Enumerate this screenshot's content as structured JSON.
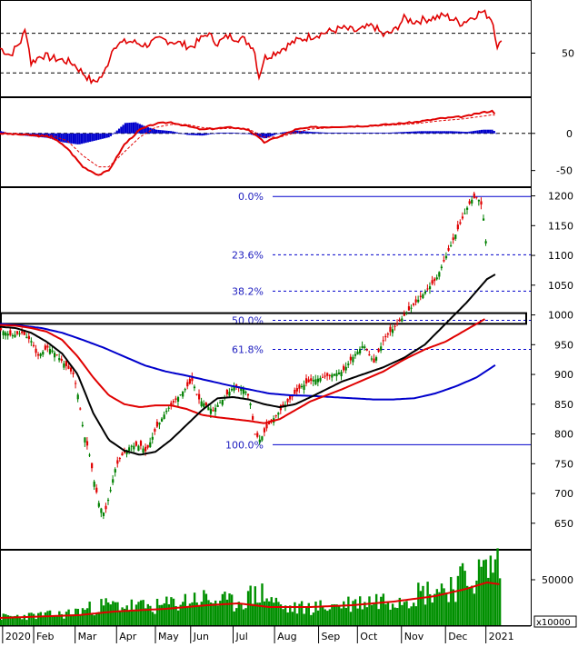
{
  "colors": {
    "up": "#008000",
    "down": "#e00000",
    "rsi_line": "#e00000",
    "macd_line": "#e00000",
    "macd_signal": "#e00000",
    "macd_hist": "#0000cc",
    "ma_short": "#e00000",
    "ma_mid": "#000000",
    "ma_long": "#0000cc",
    "fib_text": "#2020c0",
    "fib_line": "#0000cc",
    "volume_bar": "#009000",
    "volume_ma": "#e00000"
  },
  "chart_data": [
    {
      "panel": "rsi",
      "type": "line",
      "y_ticks": [
        50
      ],
      "reference_lines": [
        30,
        70
      ],
      "points": [
        [
          0.0,
          55
        ],
        [
          0.02,
          48
        ],
        [
          0.04,
          62
        ],
        [
          0.05,
          75
        ],
        [
          0.06,
          40
        ],
        [
          0.08,
          48
        ],
        [
          0.1,
          45
        ],
        [
          0.12,
          43
        ],
        [
          0.14,
          40
        ],
        [
          0.16,
          30
        ],
        [
          0.18,
          20
        ],
        [
          0.2,
          28
        ],
        [
          0.22,
          58
        ],
        [
          0.25,
          62
        ],
        [
          0.28,
          58
        ],
        [
          0.31,
          64
        ],
        [
          0.34,
          61
        ],
        [
          0.37,
          56
        ],
        [
          0.4,
          70
        ],
        [
          0.42,
          60
        ],
        [
          0.44,
          67
        ],
        [
          0.47,
          64
        ],
        [
          0.49,
          56
        ],
        [
          0.5,
          26
        ],
        [
          0.51,
          45
        ],
        [
          0.54,
          53
        ],
        [
          0.57,
          62
        ],
        [
          0.6,
          67
        ],
        [
          0.63,
          71
        ],
        [
          0.66,
          75
        ],
        [
          0.69,
          72
        ],
        [
          0.72,
          78
        ],
        [
          0.74,
          68
        ],
        [
          0.76,
          72
        ],
        [
          0.78,
          85
        ],
        [
          0.8,
          82
        ],
        [
          0.83,
          85
        ],
        [
          0.86,
          88
        ],
        [
          0.89,
          80
        ],
        [
          0.93,
          92
        ],
        [
          0.95,
          85
        ],
        [
          0.96,
          58
        ],
        [
          0.97,
          60
        ]
      ]
    },
    {
      "panel": "macd",
      "type": "line",
      "y_ticks": [
        0,
        -50
      ],
      "macd": [
        [
          0.0,
          0
        ],
        [
          0.05,
          -2
        ],
        [
          0.1,
          -5
        ],
        [
          0.13,
          -20
        ],
        [
          0.16,
          -45
        ],
        [
          0.19,
          -56
        ],
        [
          0.21,
          -50
        ],
        [
          0.24,
          -15
        ],
        [
          0.27,
          5
        ],
        [
          0.3,
          13
        ],
        [
          0.33,
          15
        ],
        [
          0.36,
          10
        ],
        [
          0.39,
          5
        ],
        [
          0.42,
          7
        ],
        [
          0.45,
          8
        ],
        [
          0.48,
          5
        ],
        [
          0.51,
          -12
        ],
        [
          0.54,
          -4
        ],
        [
          0.57,
          5
        ],
        [
          0.6,
          8
        ],
        [
          0.65,
          9
        ],
        [
          0.7,
          10
        ],
        [
          0.75,
          12
        ],
        [
          0.8,
          15
        ],
        [
          0.85,
          20
        ],
        [
          0.9,
          23
        ],
        [
          0.93,
          28
        ],
        [
          0.95,
          30
        ],
        [
          0.96,
          24
        ]
      ],
      "signal": [
        [
          0.0,
          0
        ],
        [
          0.05,
          -1
        ],
        [
          0.1,
          -3
        ],
        [
          0.13,
          -10
        ],
        [
          0.16,
          -30
        ],
        [
          0.19,
          -45
        ],
        [
          0.21,
          -45
        ],
        [
          0.24,
          -25
        ],
        [
          0.27,
          -5
        ],
        [
          0.3,
          8
        ],
        [
          0.33,
          12
        ],
        [
          0.36,
          12
        ],
        [
          0.39,
          8
        ],
        [
          0.42,
          6
        ],
        [
          0.45,
          7
        ],
        [
          0.48,
          6
        ],
        [
          0.51,
          -5
        ],
        [
          0.54,
          -5
        ],
        [
          0.57,
          1
        ],
        [
          0.6,
          6
        ],
        [
          0.65,
          8
        ],
        [
          0.7,
          9
        ],
        [
          0.75,
          11
        ],
        [
          0.8,
          13
        ],
        [
          0.85,
          17
        ],
        [
          0.9,
          20
        ],
        [
          0.93,
          23
        ],
        [
          0.95,
          25
        ],
        [
          0.96,
          24
        ]
      ],
      "histogram": [
        [
          0.0,
          3
        ],
        [
          0.03,
          -2
        ],
        [
          0.06,
          -4
        ],
        [
          0.09,
          -6
        ],
        [
          0.12,
          -12
        ],
        [
          0.15,
          -15
        ],
        [
          0.18,
          -10
        ],
        [
          0.21,
          -5
        ],
        [
          0.24,
          14
        ],
        [
          0.26,
          15
        ],
        [
          0.28,
          9
        ],
        [
          0.3,
          5
        ],
        [
          0.33,
          3
        ],
        [
          0.36,
          -2
        ],
        [
          0.39,
          -3
        ],
        [
          0.42,
          1
        ],
        [
          0.45,
          1
        ],
        [
          0.48,
          -1
        ],
        [
          0.51,
          -7
        ],
        [
          0.54,
          1
        ],
        [
          0.57,
          4
        ],
        [
          0.6,
          2
        ],
        [
          0.63,
          1
        ],
        [
          0.66,
          1
        ],
        [
          0.69,
          1
        ],
        [
          0.72,
          1
        ],
        [
          0.75,
          1
        ],
        [
          0.78,
          2
        ],
        [
          0.81,
          3
        ],
        [
          0.84,
          3
        ],
        [
          0.87,
          3
        ],
        [
          0.9,
          2
        ],
        [
          0.93,
          5
        ],
        [
          0.95,
          5
        ],
        [
          0.96,
          -3
        ]
      ]
    },
    {
      "panel": "price",
      "type": "candlestick",
      "ylim": [
        610,
        1210
      ],
      "y_ticks": [
        650,
        700,
        750,
        800,
        850,
        900,
        950,
        1000,
        1050,
        1100,
        1150,
        1200
      ],
      "fibonacci": [
        {
          "label": "0.0%",
          "value": 1199
        },
        {
          "label": "23.6%",
          "value": 1101
        },
        {
          "label": "38.2%",
          "value": 1040
        },
        {
          "label": "50.0%",
          "value": 991
        },
        {
          "label": "61.8%",
          "value": 942
        },
        {
          "label": "100.0%",
          "value": 782
        }
      ],
      "resistance_zone": [
        985,
        1003
      ],
      "close": [
        [
          0.0,
          975
        ],
        [
          0.02,
          965
        ],
        [
          0.04,
          970
        ],
        [
          0.06,
          955
        ],
        [
          0.07,
          930
        ],
        [
          0.09,
          945
        ],
        [
          0.1,
          940
        ],
        [
          0.12,
          920
        ],
        [
          0.14,
          900
        ],
        [
          0.15,
          860
        ],
        [
          0.16,
          800
        ],
        [
          0.17,
          770
        ],
        [
          0.18,
          720
        ],
        [
          0.19,
          680
        ],
        [
          0.2,
          665
        ],
        [
          0.21,
          700
        ],
        [
          0.22,
          740
        ],
        [
          0.23,
          760
        ],
        [
          0.25,
          780
        ],
        [
          0.27,
          780
        ],
        [
          0.28,
          770
        ],
        [
          0.3,
          810
        ],
        [
          0.32,
          840
        ],
        [
          0.34,
          860
        ],
        [
          0.36,
          880
        ],
        [
          0.37,
          890
        ],
        [
          0.38,
          860
        ],
        [
          0.4,
          845
        ],
        [
          0.41,
          840
        ],
        [
          0.43,
          860
        ],
        [
          0.45,
          880
        ],
        [
          0.47,
          875
        ],
        [
          0.48,
          860
        ],
        [
          0.49,
          800
        ],
        [
          0.5,
          790
        ],
        [
          0.52,
          820
        ],
        [
          0.54,
          840
        ],
        [
          0.56,
          860
        ],
        [
          0.58,
          880
        ],
        [
          0.6,
          890
        ],
        [
          0.62,
          895
        ],
        [
          0.64,
          900
        ],
        [
          0.66,
          905
        ],
        [
          0.68,
          930
        ],
        [
          0.7,
          950
        ],
        [
          0.72,
          920
        ],
        [
          0.74,
          960
        ],
        [
          0.76,
          980
        ],
        [
          0.78,
          1000
        ],
        [
          0.8,
          1020
        ],
        [
          0.82,
          1040
        ],
        [
          0.84,
          1060
        ],
        [
          0.86,
          1100
        ],
        [
          0.88,
          1140
        ],
        [
          0.9,
          1180
        ],
        [
          0.91,
          1195
        ],
        [
          0.92,
          1198
        ],
        [
          0.93,
          1180
        ],
        [
          0.935,
          1120
        ],
        [
          0.94,
          1140
        ]
      ],
      "ma_short": [
        [
          0.0,
          983
        ],
        [
          0.03,
          982
        ],
        [
          0.06,
          978
        ],
        [
          0.09,
          972
        ],
        [
          0.12,
          958
        ],
        [
          0.15,
          930
        ],
        [
          0.18,
          895
        ],
        [
          0.21,
          865
        ],
        [
          0.24,
          850
        ],
        [
          0.27,
          845
        ],
        [
          0.3,
          848
        ],
        [
          0.33,
          848
        ],
        [
          0.36,
          842
        ],
        [
          0.39,
          832
        ],
        [
          0.42,
          828
        ],
        [
          0.45,
          825
        ],
        [
          0.48,
          822
        ],
        [
          0.51,
          818
        ],
        [
          0.54,
          825
        ],
        [
          0.57,
          840
        ],
        [
          0.6,
          855
        ],
        [
          0.63,
          865
        ],
        [
          0.66,
          875
        ],
        [
          0.7,
          890
        ],
        [
          0.74,
          905
        ],
        [
          0.78,
          925
        ],
        [
          0.82,
          942
        ],
        [
          0.86,
          955
        ],
        [
          0.9,
          975
        ],
        [
          0.94,
          995
        ]
      ],
      "ma_mid": [
        [
          0.0,
          980
        ],
        [
          0.03,
          978
        ],
        [
          0.06,
          970
        ],
        [
          0.09,
          955
        ],
        [
          0.12,
          935
        ],
        [
          0.15,
          900
        ],
        [
          0.18,
          835
        ],
        [
          0.21,
          790
        ],
        [
          0.24,
          772
        ],
        [
          0.27,
          765
        ],
        [
          0.3,
          770
        ],
        [
          0.33,
          790
        ],
        [
          0.36,
          815
        ],
        [
          0.39,
          840
        ],
        [
          0.42,
          860
        ],
        [
          0.45,
          862
        ],
        [
          0.48,
          858
        ],
        [
          0.51,
          850
        ],
        [
          0.54,
          845
        ],
        [
          0.57,
          850
        ],
        [
          0.6,
          862
        ],
        [
          0.63,
          875
        ],
        [
          0.66,
          888
        ],
        [
          0.7,
          900
        ],
        [
          0.74,
          912
        ],
        [
          0.78,
          928
        ],
        [
          0.82,
          950
        ],
        [
          0.86,
          985
        ],
        [
          0.9,
          1020
        ],
        [
          0.94,
          1060
        ],
        [
          0.96,
          1070
        ]
      ],
      "ma_long": [
        [
          0.0,
          985
        ],
        [
          0.04,
          982
        ],
        [
          0.08,
          978
        ],
        [
          0.12,
          970
        ],
        [
          0.16,
          958
        ],
        [
          0.2,
          945
        ],
        [
          0.24,
          930
        ],
        [
          0.28,
          915
        ],
        [
          0.32,
          905
        ],
        [
          0.36,
          898
        ],
        [
          0.4,
          890
        ],
        [
          0.44,
          882
        ],
        [
          0.48,
          875
        ],
        [
          0.52,
          868
        ],
        [
          0.56,
          865
        ],
        [
          0.6,
          864
        ],
        [
          0.64,
          862
        ],
        [
          0.68,
          860
        ],
        [
          0.72,
          858
        ],
        [
          0.76,
          858
        ],
        [
          0.8,
          860
        ],
        [
          0.84,
          868
        ],
        [
          0.88,
          880
        ],
        [
          0.92,
          895
        ],
        [
          0.96,
          918
        ]
      ]
    },
    {
      "panel": "volume",
      "type": "bar",
      "y_ticks": [
        50000
      ],
      "unit_label": "x10000",
      "x_tick_labels": [
        "2020",
        "Feb",
        "Mar",
        "Apr",
        "May",
        "Jun",
        "Jul",
        "Aug",
        "Sep",
        "Oct",
        "Nov",
        "Dec",
        "2021"
      ]
    }
  ]
}
